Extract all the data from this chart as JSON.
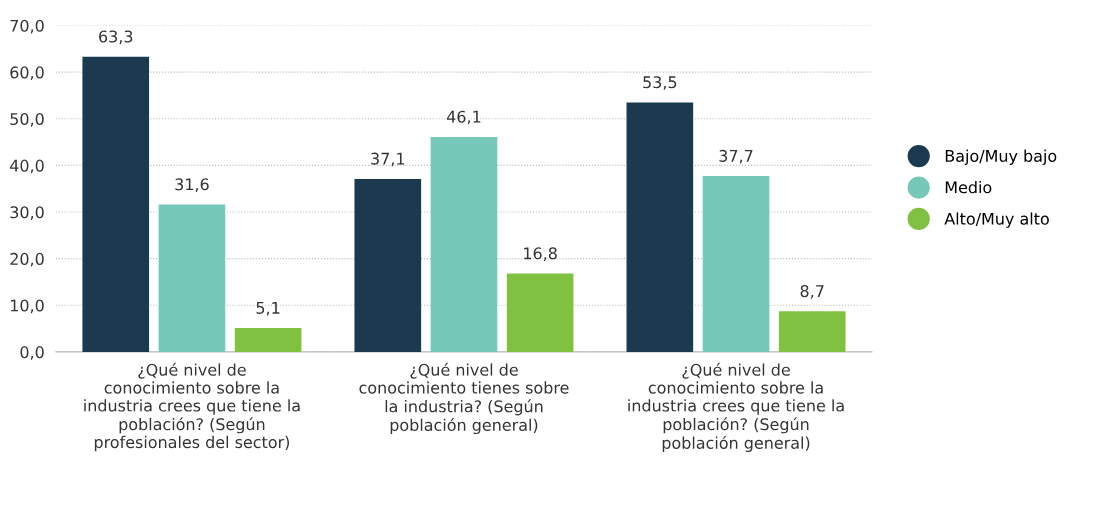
{
  "chart_data": {
    "type": "bar",
    "categories": [
      "¿Qué nivel de\nconocimiento sobre la\nindustria crees que tiene la\npoblación? (Según\nprofesionales del sector)",
      "¿Qué nivel de\nconocimiento tienes sobre\nla industria? (Según\npoblación general)",
      "¿Qué nivel de\nconocimiento sobre la\nindustria crees que tiene la\npoblación? (Según\npoblación general)"
    ],
    "series": [
      {
        "name": "Bajo/Muy bajo",
        "color": "#1b3a4f",
        "values": [
          63.3,
          37.1,
          53.5
        ],
        "value_labels": [
          "63,3",
          "37,1",
          "53,5"
        ]
      },
      {
        "name": "Medio",
        "color": "#76c8b8",
        "values": [
          31.6,
          46.1,
          37.7
        ],
        "value_labels": [
          "31,6",
          "46,1",
          "37,7"
        ]
      },
      {
        "name": "Alto/Muy alto",
        "color": "#80c142",
        "values": [
          5.1,
          16.8,
          8.7
        ],
        "value_labels": [
          "5,1",
          "16,8",
          "8,7"
        ]
      }
    ],
    "ylim": [
      0,
      70
    ],
    "yticks": [
      {
        "value": 0,
        "label": "0,0"
      },
      {
        "value": 10,
        "label": "10,0"
      },
      {
        "value": 20,
        "label": "20,0"
      },
      {
        "value": 30,
        "label": "30,0"
      },
      {
        "value": 40,
        "label": "40,0"
      },
      {
        "value": 50,
        "label": "50,0"
      },
      {
        "value": 60,
        "label": "60,0"
      },
      {
        "value": 70,
        "label": "70,0"
      }
    ],
    "grid": "y",
    "legend": "right"
  }
}
